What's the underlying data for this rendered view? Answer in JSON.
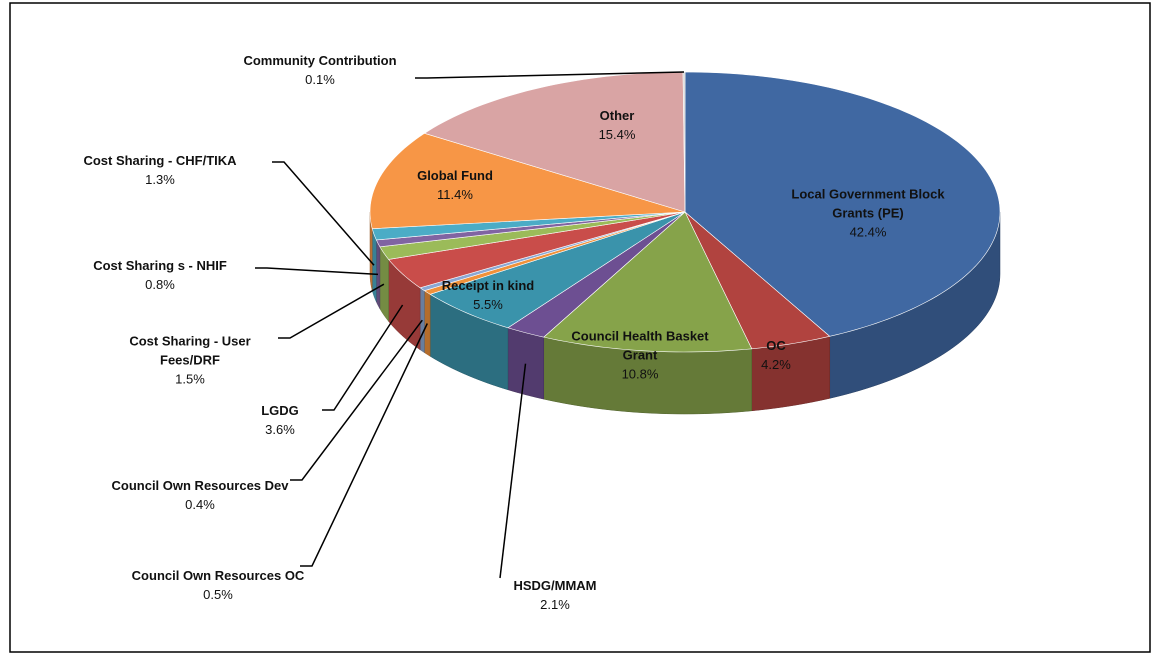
{
  "chart_data": {
    "type": "pie",
    "categories": [
      "Local Government Block Grants (PE)",
      "OC",
      "Council Health Basket Grant",
      "HSDG/MMAM",
      "Receipt in kind",
      "Council Own Resources OC",
      "Council Own Resources Dev",
      "LGDG",
      "Cost Sharing - User Fees/DRF",
      "Cost Sharing s - NHIF",
      "Cost Sharing - CHF/TIKA",
      "Global Fund",
      "Other",
      "Community Contribution"
    ],
    "values": [
      42.4,
      4.2,
      10.8,
      2.1,
      5.5,
      0.5,
      0.4,
      3.6,
      1.5,
      0.8,
      1.3,
      11.4,
      15.4,
      0.1
    ],
    "value_labels": [
      "42.4%",
      "4.2%",
      "10.8%",
      "2.1%",
      "5.5%",
      "0.5%",
      "0.4%",
      "3.6%",
      "1.5%",
      "0.8%",
      "1.3%",
      "11.4%",
      "15.4%",
      "0.1%"
    ],
    "colors": [
      "#4068a2",
      "#b1433f",
      "#86a34a",
      "#6d4f92",
      "#3a93ab",
      "#f0913a",
      "#8aa8d4",
      "#c94d4a",
      "#9bbb59",
      "#8064a2",
      "#4bacc6",
      "#f79646",
      "#d9a4a4",
      "#cfcfcf"
    ]
  }
}
